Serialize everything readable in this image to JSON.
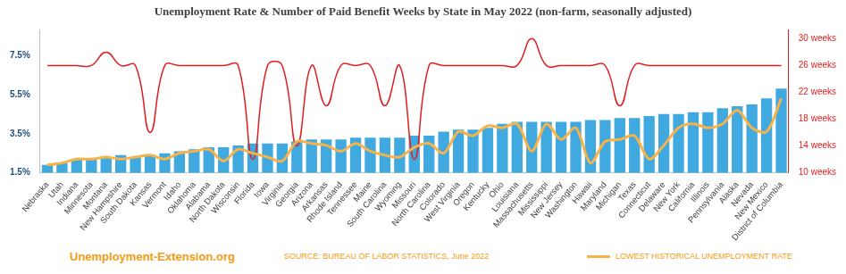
{
  "chart_data": {
    "type": "bar",
    "title": "Unemployment Rate & Number of Paid Benefit Weeks by State in May 2022 (non-farm, seasonally adjusted)",
    "site": "Unemployment-Extension.org",
    "source": "SOURCE: BUREAU OF LABOR STATISTICS, June 2022",
    "categories": [
      "Nebraska",
      "Utah",
      "Indiana",
      "Minnesota",
      "Montana",
      "New Hampshire",
      "South Dakota",
      "Kansas",
      "Vermont",
      "Idaho",
      "Oklahoma",
      "Alabama",
      "North Dakota",
      "Wisconsin",
      "Florida",
      "Iowa",
      "Virginia",
      "Georgia",
      "Arizona",
      "Arkansas",
      "Rhode Island",
      "Tennessee",
      "Maine",
      "South Carolina",
      "Wyoming",
      "Missouri",
      "North Carolina",
      "Colorado",
      "West Virginia",
      "Oregon",
      "Kentucky",
      "Ohio",
      "Louisiana",
      "Massachusetts",
      "Mississippi",
      "New Jersey",
      "Washington",
      "Hawaii",
      "Maryland",
      "Michigan",
      "Texas",
      "Connecticut",
      "Delaware",
      "New York",
      "California",
      "Illinois",
      "Pennsylvania",
      "Alaska",
      "Nevada",
      "New Mexico",
      "District of Columbia"
    ],
    "series": [
      {
        "type": "bar",
        "color": "#3fa9e0",
        "values": [
          1.9,
          2.0,
          2.2,
          2.2,
          2.3,
          2.4,
          2.3,
          2.4,
          2.5,
          2.6,
          2.7,
          2.8,
          2.8,
          2.9,
          3.0,
          3.0,
          3.0,
          3.1,
          3.2,
          3.2,
          3.2,
          3.3,
          3.3,
          3.3,
          3.3,
          3.4,
          3.4,
          3.6,
          3.7,
          3.7,
          3.8,
          4.0,
          4.1,
          4.1,
          4.1,
          4.1,
          4.1,
          4.2,
          4.2,
          4.3,
          4.3,
          4.4,
          4.5,
          4.5,
          4.6,
          4.6,
          4.8,
          4.9,
          5.0,
          5.3,
          5.8
        ]
      },
      {
        "type": "line",
        "name": "LOWEST HISTORICAL UNEMPLOYMENT RATE",
        "color": "#f7b24a",
        "values": [
          1.9,
          2.0,
          2.2,
          2.2,
          2.3,
          2.2,
          2.3,
          2.4,
          2.2,
          2.5,
          2.6,
          2.7,
          2.1,
          2.7,
          2.5,
          2.3,
          2.1,
          3.1,
          3.0,
          2.9,
          2.6,
          3.0,
          2.6,
          2.4,
          2.3,
          2.8,
          3.0,
          2.5,
          3.6,
          3.4,
          3.9,
          3.8,
          4.0,
          2.6,
          4.0,
          3.2,
          3.8,
          2.0,
          3.1,
          3.2,
          3.4,
          2.2,
          2.9,
          3.8,
          4.0,
          3.8,
          4.0,
          4.7,
          3.8,
          3.6,
          5.3
        ]
      },
      {
        "type": "line",
        "axis": "y2",
        "color": "#e02020",
        "values": [
          26,
          26,
          26,
          26,
          28,
          26,
          26,
          16,
          26,
          26,
          26,
          26,
          26,
          26,
          12,
          26,
          26,
          14,
          26,
          20,
          26,
          26,
          26,
          20,
          26,
          12,
          26,
          26,
          26,
          26,
          26,
          26,
          26,
          30,
          26,
          26,
          26,
          26,
          26,
          20,
          26,
          26,
          26,
          26,
          26,
          26,
          26,
          26,
          26,
          26,
          26
        ]
      }
    ],
    "ylim": [
      1.5,
      8.8
    ],
    "yticks": [
      {
        "value": 1.5,
        "label": "1.5%"
      },
      {
        "value": 3.5,
        "label": "3.5%"
      },
      {
        "value": 5.5,
        "label": "5.5%"
      },
      {
        "value": 7.5,
        "label": "7.5%"
      }
    ],
    "y2lim": [
      10,
      31.3
    ],
    "y2ticks": [
      {
        "value": 10,
        "label": "10 weeks"
      },
      {
        "value": 14,
        "label": "14 weeks"
      },
      {
        "value": 18,
        "label": "18 weeks"
      },
      {
        "value": 22,
        "label": "22 weeks"
      },
      {
        "value": 26,
        "label": "26 weeks"
      },
      {
        "value": 30,
        "label": "30 weeks"
      }
    ],
    "grid": false,
    "legend": "bottom-right"
  }
}
